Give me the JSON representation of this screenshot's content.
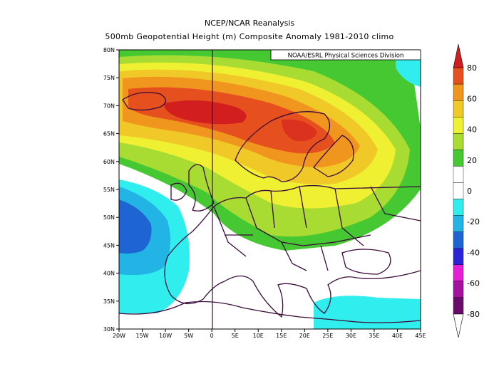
{
  "title_line1": "NCEP/NCAR Reanalysis",
  "title_line2": "500mb Geopotential Height (m) Composite Anomaly 1981-2010 climo",
  "credit": "NOAA/ESRL Physical Sciences Division",
  "lon_ticks": [
    "20W",
    "15W",
    "10W",
    "5W",
    "0",
    "5E",
    "10E",
    "15E",
    "20E",
    "25E",
    "30E",
    "35E",
    "40E",
    "45E"
  ],
  "lat_ticks": [
    "30N",
    "35N",
    "40N",
    "45N",
    "50N",
    "55N",
    "60N",
    "65N",
    "70N",
    "75N",
    "80N"
  ],
  "colorbar": {
    "labels": [
      "80",
      "60",
      "40",
      "20",
      "0",
      "-20",
      "-40",
      "-60",
      "-80"
    ],
    "colors": [
      "#ffffff",
      "#6a0a6a",
      "#a6109e",
      "#e61ed6",
      "#2b23d6",
      "#1e64d2",
      "#23b4e6",
      "#31eeee",
      "#ffffff",
      "#ffffff",
      "#46c832",
      "#a8dc32",
      "#f0f032",
      "#f0c828",
      "#f0961e",
      "#e6501e",
      "#d21e1e"
    ]
  },
  "chart_data": {
    "type": "heatmap",
    "variable": "500mb Geopotential Height (m) Composite Anomaly",
    "lon_range": [
      -20,
      45
    ],
    "lat_range": [
      30,
      80
    ],
    "contour_levels": [
      -80,
      -70,
      -60,
      -50,
      -40,
      -30,
      -20,
      -10,
      0,
      10,
      20,
      30,
      40,
      50,
      60,
      70,
      80
    ],
    "features": [
      {
        "center_lon": -3,
        "center_lat": 69,
        "max_value": 75
      },
      {
        "center_lon": 18,
        "center_lat": 65,
        "max_value": 65
      },
      {
        "center_lon": -17,
        "center_lat": 47,
        "min_value": -30
      },
      {
        "center_lon": 30,
        "center_lat": 35,
        "min_value": -15
      }
    ]
  }
}
